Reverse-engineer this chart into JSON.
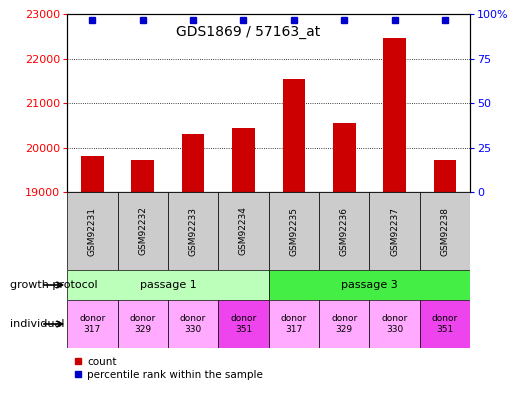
{
  "title": "GDS1869 / 57163_at",
  "samples": [
    "GSM92231",
    "GSM92232",
    "GSM92233",
    "GSM92234",
    "GSM92235",
    "GSM92236",
    "GSM92237",
    "GSM92238"
  ],
  "counts": [
    19800,
    19730,
    20300,
    20430,
    21540,
    20560,
    22450,
    19720
  ],
  "ymin": 19000,
  "ymax": 23000,
  "yticks": [
    19000,
    20000,
    21000,
    22000,
    23000
  ],
  "y2ticks": [
    0,
    25,
    50,
    75,
    100
  ],
  "individuals": [
    "donor\n317",
    "donor\n329",
    "donor\n330",
    "donor\n351",
    "donor\n317",
    "donor\n329",
    "donor\n330",
    "donor\n351"
  ],
  "ind_colors": [
    "#ffaaff",
    "#ffaaff",
    "#ffaaff",
    "#ee44ee",
    "#ffaaff",
    "#ffaaff",
    "#ffaaff",
    "#ee44ee"
  ],
  "bar_color": "#cc0000",
  "dot_color": "#0000cc",
  "gp_colors": [
    "#bbffbb",
    "#44ee44"
  ],
  "sample_box_color": "#cccccc",
  "gp_data": [
    {
      "label": "passage 1",
      "start": 0,
      "end": 4
    },
    {
      "label": "passage 3",
      "start": 4,
      "end": 8
    }
  ]
}
